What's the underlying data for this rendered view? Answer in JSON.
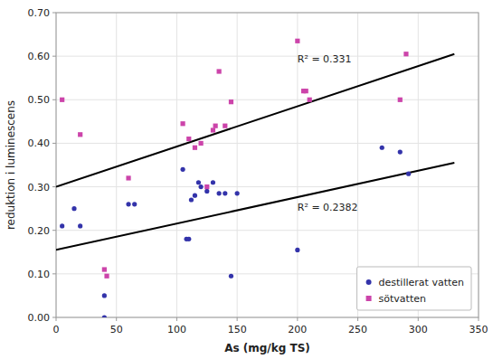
{
  "chart_data": {
    "type": "scatter",
    "xlabel": "As (mg/kg TS)",
    "ylabel": "reduktion i luminescens",
    "xlim": [
      0,
      350
    ],
    "ylim": [
      0.0,
      0.7
    ],
    "xticks": [
      0,
      50,
      100,
      150,
      200,
      250,
      300,
      350
    ],
    "yticks": [
      {
        "value": 0.0,
        "label": "0.00"
      },
      {
        "value": 0.1,
        "label": "0.10"
      },
      {
        "value": 0.2,
        "label": "0.20"
      },
      {
        "value": 0.3,
        "label": "0.30"
      },
      {
        "value": 0.4,
        "label": "0.40"
      },
      {
        "value": 0.5,
        "label": "0.50"
      },
      {
        "value": 0.6,
        "label": "0.60"
      },
      {
        "value": 0.7,
        "label": "0.70"
      }
    ],
    "grid": true,
    "legend": "lower right",
    "series": [
      {
        "name": "destillerat vatten",
        "type": "scatter",
        "marker": "circle",
        "color": "#3333AA",
        "x": [
          5,
          15,
          20,
          40,
          40,
          60,
          65,
          105,
          108,
          110,
          112,
          115,
          118,
          120,
          125,
          130,
          135,
          140,
          145,
          150,
          200,
          270,
          285,
          292
        ],
        "values": [
          0.21,
          0.25,
          0.21,
          0.0,
          0.05,
          0.26,
          0.26,
          0.34,
          0.18,
          0.18,
          0.27,
          0.28,
          0.31,
          0.3,
          0.29,
          0.31,
          0.285,
          0.285,
          0.095,
          0.285,
          0.155,
          0.39,
          0.38,
          0.33
        ]
      },
      {
        "name": "sötvatten",
        "type": "scatter",
        "marker": "square",
        "color": "#CC44AA",
        "x": [
          5,
          20,
          40,
          42,
          60,
          105,
          110,
          115,
          120,
          125,
          130,
          132,
          135,
          140,
          145,
          200,
          205,
          207,
          210,
          285,
          290
        ],
        "values": [
          0.5,
          0.42,
          0.11,
          0.095,
          0.32,
          0.445,
          0.41,
          0.39,
          0.4,
          0.3,
          0.43,
          0.44,
          0.565,
          0.44,
          0.495,
          0.635,
          0.52,
          0.52,
          0.5,
          0.5,
          0.605
        ]
      },
      {
        "type": "line",
        "line_style": "solid",
        "color": "#000000",
        "x": [
          0,
          330
        ],
        "values": [
          0.155,
          0.355
        ]
      },
      {
        "type": "line",
        "line_style": "solid",
        "color": "#000000",
        "x": [
          0,
          330
        ],
        "values": [
          0.3,
          0.605
        ]
      }
    ],
    "annotations": [
      {
        "text": "R² = 0.331",
        "x": 200,
        "y": 0.585
      },
      {
        "text": "R² = 0.2382",
        "x": 200,
        "y": 0.245
      }
    ]
  }
}
